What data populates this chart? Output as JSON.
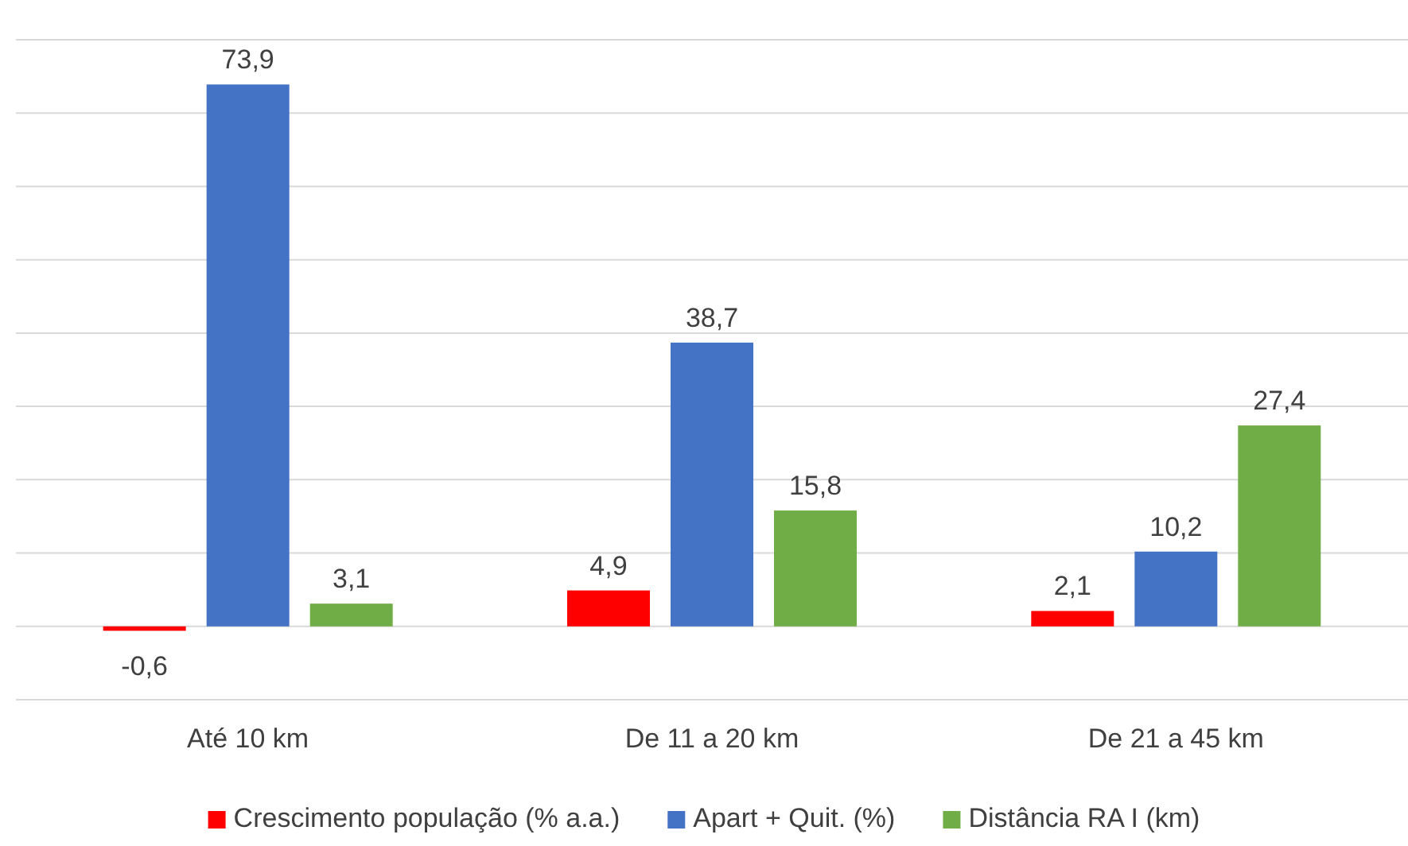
{
  "chart_data": {
    "type": "bar",
    "categories": [
      "Até 10 km",
      "De 11 a 20 km",
      "De 21 a 45 km"
    ],
    "series": [
      {
        "name": "Crescimento população (% a.a.)",
        "color": "#ff0000",
        "values": [
          -0.6,
          4.9,
          2.1
        ],
        "value_labels": [
          "-0,6",
          "4,9",
          "2,1"
        ]
      },
      {
        "name": "Apart + Quit. (%)",
        "color": "#4472c4",
        "values": [
          73.9,
          38.7,
          10.2
        ],
        "value_labels": [
          "73,9",
          "38,7",
          "10,2"
        ]
      },
      {
        "name": "Distância RA I (km)",
        "color": "#70ad47",
        "values": [
          3.1,
          15.8,
          27.4
        ],
        "value_labels": [
          "3,1",
          "15,8",
          "27,4"
        ]
      }
    ],
    "grid": "y",
    "legend": "bottom"
  }
}
